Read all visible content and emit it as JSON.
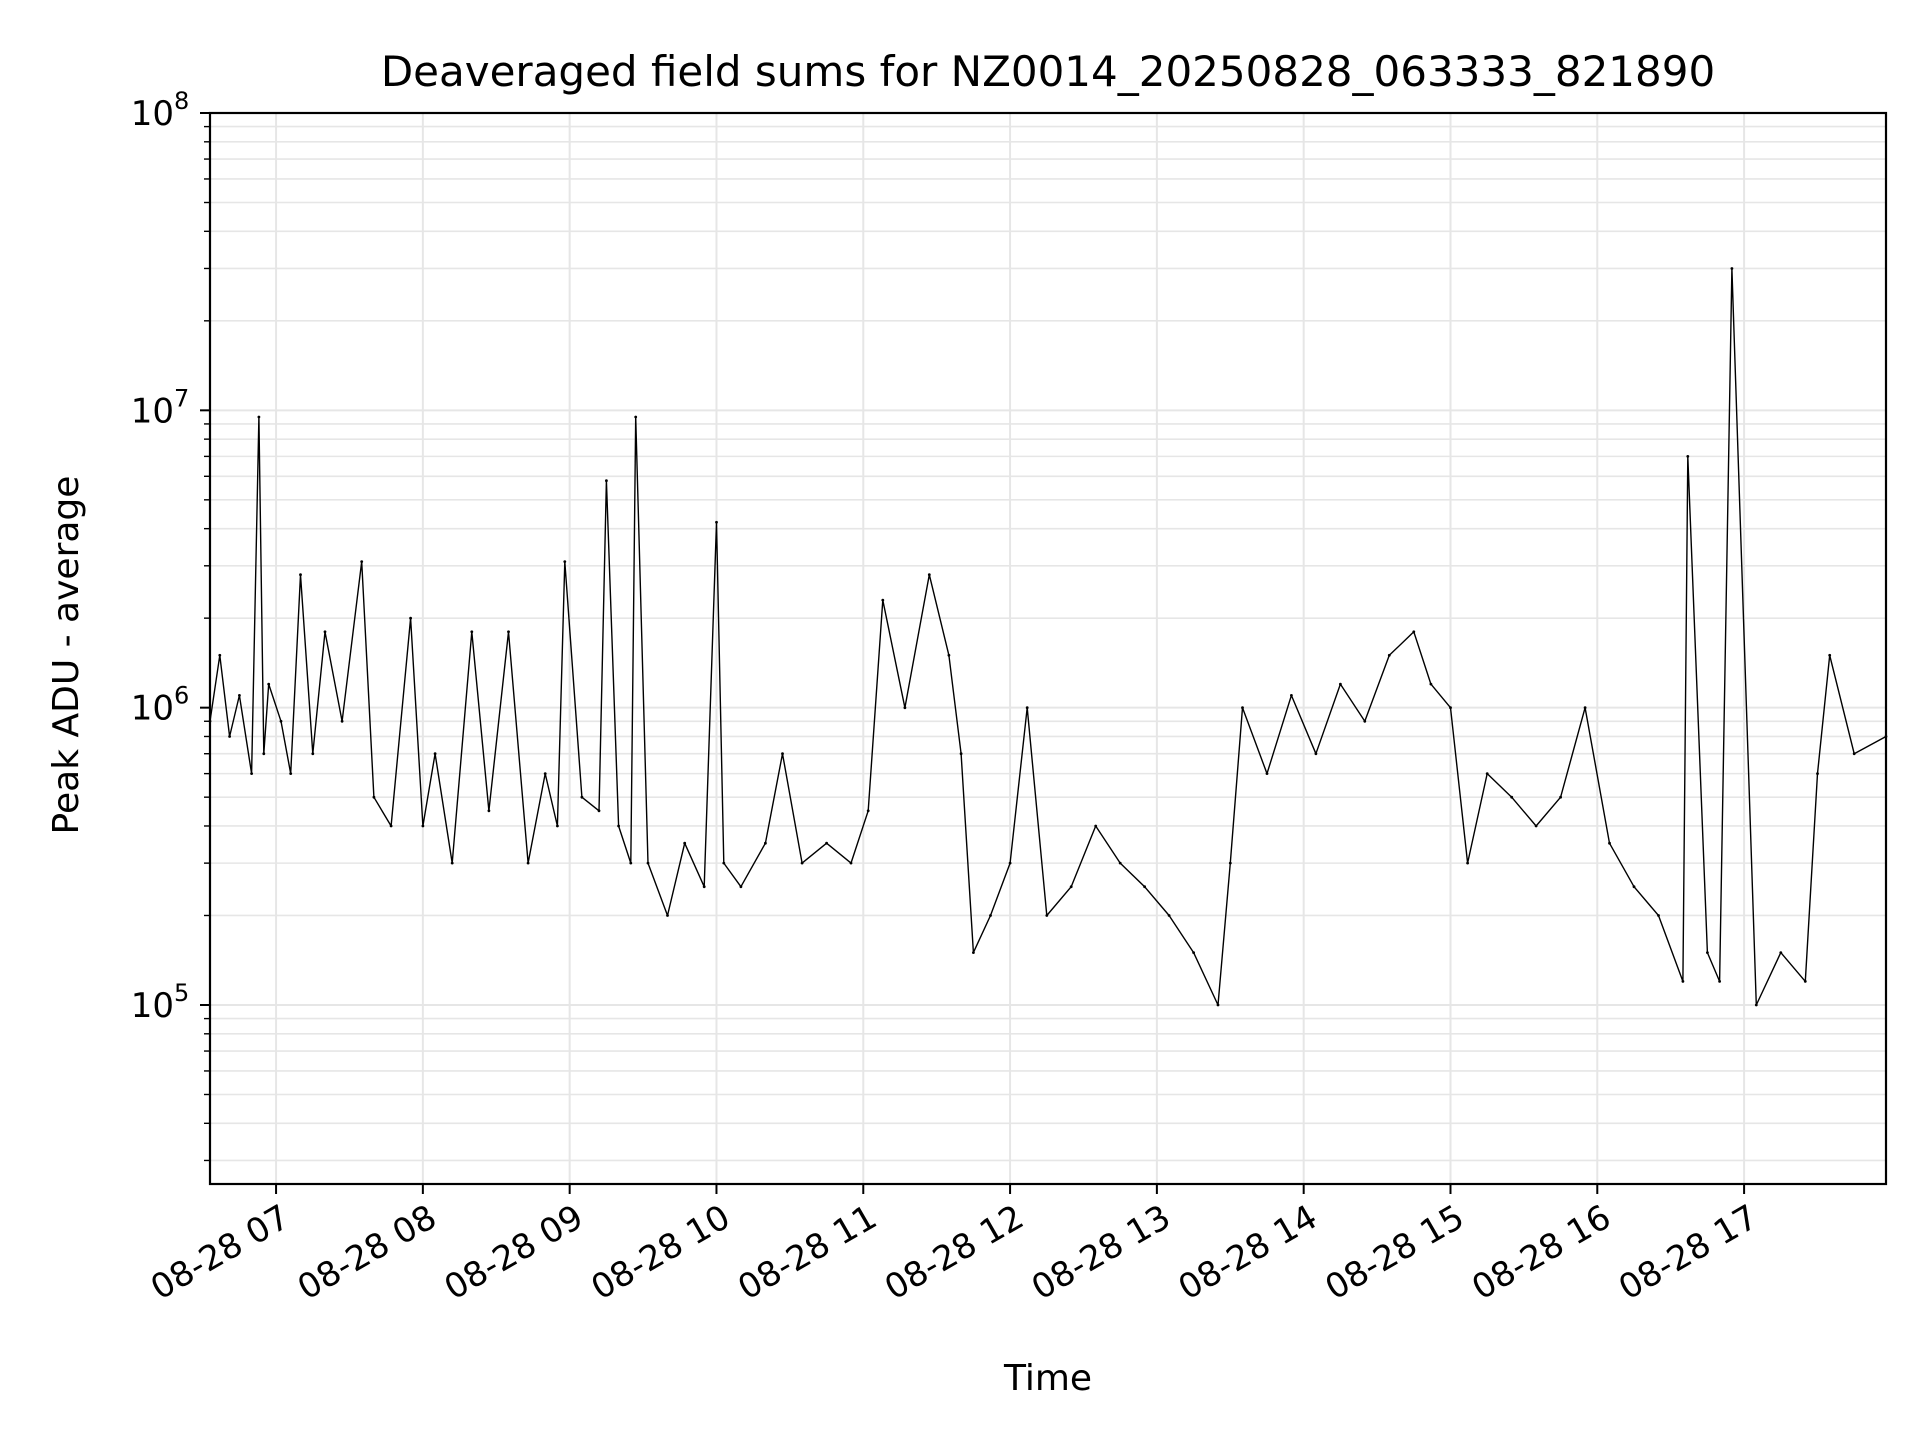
{
  "chart_data": {
    "type": "line",
    "title": "Deaveraged field sums for NZ0014_20250828_063333_821890",
    "xlabel": "Time",
    "ylabel": "Peak ADU - average",
    "yscale": "log",
    "ylim": [
      25000,
      100000000
    ],
    "xlim": [
      "2025-08-28 06:33",
      "2025-08-28 17:58"
    ],
    "grid": true,
    "grid_color": "#e6e6e6",
    "line_color": "#000000",
    "y_tick_labels": [
      {
        "value": 100000,
        "base": "10",
        "exp": "5"
      },
      {
        "value": 1000000,
        "base": "10",
        "exp": "6"
      },
      {
        "value": 10000000,
        "base": "10",
        "exp": "7"
      },
      {
        "value": 100000000,
        "base": "10",
        "exp": "8"
      }
    ],
    "x_tick_labels": [
      {
        "time": "2025-08-28 07:00",
        "label": "08-28 07"
      },
      {
        "time": "2025-08-28 08:00",
        "label": "08-28 08"
      },
      {
        "time": "2025-08-28 09:00",
        "label": "08-28 09"
      },
      {
        "time": "2025-08-28 10:00",
        "label": "08-28 10"
      },
      {
        "time": "2025-08-28 11:00",
        "label": "08-28 11"
      },
      {
        "time": "2025-08-28 12:00",
        "label": "08-28 12"
      },
      {
        "time": "2025-08-28 13:00",
        "label": "08-28 13"
      },
      {
        "time": "2025-08-28 14:00",
        "label": "08-28 14"
      },
      {
        "time": "2025-08-28 15:00",
        "label": "08-28 15"
      },
      {
        "time": "2025-08-28 16:00",
        "label": "08-28 16"
      },
      {
        "time": "2025-08-28 17:00",
        "label": "08-28 17"
      }
    ],
    "series": [
      {
        "x": [
          "2025-08-28 06:33",
          "2025-08-28 06:37",
          "2025-08-28 06:41",
          "2025-08-28 06:45",
          "2025-08-28 06:50",
          "2025-08-28 06:53",
          "2025-08-28 06:55",
          "2025-08-28 06:57",
          "2025-08-28 07:02",
          "2025-08-28 07:06",
          "2025-08-28 07:10",
          "2025-08-28 07:15",
          "2025-08-28 07:20",
          "2025-08-28 07:27",
          "2025-08-28 07:35",
          "2025-08-28 07:40",
          "2025-08-28 07:47",
          "2025-08-28 07:55",
          "2025-08-28 08:00",
          "2025-08-28 08:05",
          "2025-08-28 08:12",
          "2025-08-28 08:20",
          "2025-08-28 08:27",
          "2025-08-28 08:35",
          "2025-08-28 08:43",
          "2025-08-28 08:50",
          "2025-08-28 08:55",
          "2025-08-28 08:58",
          "2025-08-28 09:05",
          "2025-08-28 09:12",
          "2025-08-28 09:15",
          "2025-08-28 09:20",
          "2025-08-28 09:25",
          "2025-08-28 09:27",
          "2025-08-28 09:32",
          "2025-08-28 09:40",
          "2025-08-28 09:47",
          "2025-08-28 09:55",
          "2025-08-28 10:00",
          "2025-08-28 10:03",
          "2025-08-28 10:10",
          "2025-08-28 10:20",
          "2025-08-28 10:27",
          "2025-08-28 10:35",
          "2025-08-28 10:45",
          "2025-08-28 10:55",
          "2025-08-28 11:02",
          "2025-08-28 11:08",
          "2025-08-28 11:17",
          "2025-08-28 11:27",
          "2025-08-28 11:35",
          "2025-08-28 11:40",
          "2025-08-28 11:45",
          "2025-08-28 11:52",
          "2025-08-28 12:00",
          "2025-08-28 12:07",
          "2025-08-28 12:15",
          "2025-08-28 12:25",
          "2025-08-28 12:35",
          "2025-08-28 12:45",
          "2025-08-28 12:55",
          "2025-08-28 13:05",
          "2025-08-28 13:15",
          "2025-08-28 13:25",
          "2025-08-28 13:30",
          "2025-08-28 13:35",
          "2025-08-28 13:45",
          "2025-08-28 13:55",
          "2025-08-28 14:05",
          "2025-08-28 14:15",
          "2025-08-28 14:25",
          "2025-08-28 14:35",
          "2025-08-28 14:45",
          "2025-08-28 14:52",
          "2025-08-28 15:00",
          "2025-08-28 15:07",
          "2025-08-28 15:15",
          "2025-08-28 15:25",
          "2025-08-28 15:35",
          "2025-08-28 15:45",
          "2025-08-28 15:55",
          "2025-08-28 16:05",
          "2025-08-28 16:15",
          "2025-08-28 16:25",
          "2025-08-28 16:35",
          "2025-08-28 16:37",
          "2025-08-28 16:45",
          "2025-08-28 16:50",
          "2025-08-28 16:55",
          "2025-08-28 17:05",
          "2025-08-28 17:15",
          "2025-08-28 17:25",
          "2025-08-28 17:30",
          "2025-08-28 17:35",
          "2025-08-28 17:45",
          "2025-08-28 17:58"
        ],
        "y": [
          900000,
          1500000,
          800000,
          1100000,
          600000,
          9500000,
          700000,
          1200000,
          900000,
          600000,
          2800000,
          700000,
          1800000,
          900000,
          3100000,
          500000,
          400000,
          2000000,
          400000,
          700000,
          300000,
          1800000,
          450000,
          1800000,
          300000,
          600000,
          400000,
          3100000,
          500000,
          450000,
          5800000,
          400000,
          300000,
          9500000,
          300000,
          200000,
          350000,
          250000,
          4200000,
          300000,
          250000,
          350000,
          700000,
          300000,
          350000,
          300000,
          450000,
          2300000,
          1000000,
          2800000,
          1500000,
          700000,
          150000,
          200000,
          300000,
          1000000,
          200000,
          250000,
          400000,
          300000,
          250000,
          200000,
          150000,
          100000,
          300000,
          1000000,
          600000,
          1100000,
          700000,
          1200000,
          900000,
          1500000,
          1800000,
          1200000,
          1000000,
          300000,
          600000,
          500000,
          400000,
          500000,
          1000000,
          350000,
          250000,
          200000,
          120000,
          7000000,
          150000,
          120000,
          30000000,
          100000,
          150000,
          120000,
          600000,
          1500000,
          700000,
          800000
        ]
      }
    ]
  }
}
